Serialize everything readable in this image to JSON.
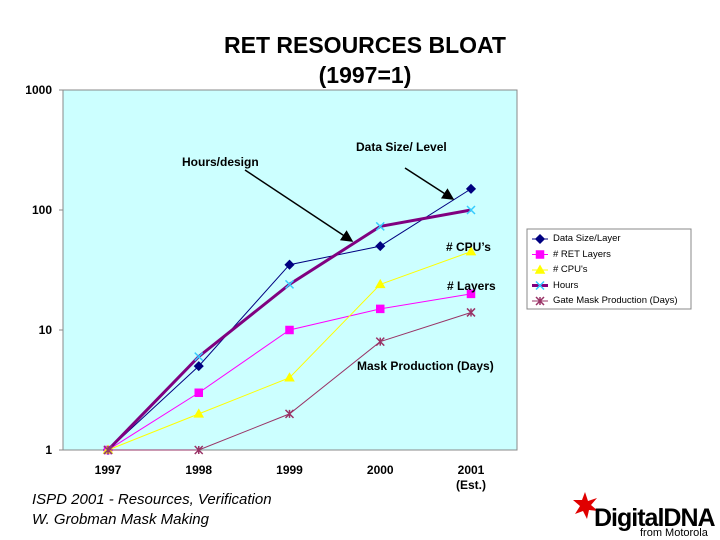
{
  "chart_data": {
    "type": "line",
    "title": "RET RESOURCES BLOAT\n(1997=1)",
    "categories": [
      "1997",
      "1998",
      "1999",
      "2000",
      "2001\n(Est.)"
    ],
    "ylim": [
      1,
      1000
    ],
    "yticks": [
      1,
      10,
      100,
      1000
    ],
    "log_scale": true,
    "background": "#ccffff",
    "series": [
      {
        "name": "Data Size/Layer",
        "color": "#000080",
        "marker": "diamond",
        "width": 1,
        "values": [
          1,
          5,
          35,
          50,
          150
        ]
      },
      {
        "name": "# RET Layers",
        "color": "#ff00ff",
        "marker": "square",
        "width": 1,
        "values": [
          1,
          3,
          10,
          15,
          20
        ]
      },
      {
        "name": "# CPU's",
        "color": "#ffff00",
        "marker": "triangle",
        "width": 1,
        "values": [
          1,
          2,
          4,
          24,
          45
        ]
      },
      {
        "name": "Hours",
        "color": "#800080",
        "marker": "x",
        "marker_color": "#33ccff",
        "width": 3,
        "values": [
          1,
          6,
          24,
          73,
          100
        ]
      },
      {
        "name": "Gate Mask Production (Days)",
        "color": "#993366",
        "marker": "star",
        "width": 1,
        "values": [
          1,
          1,
          2,
          8,
          14
        ]
      }
    ],
    "annotations": [
      {
        "text": "Hours/design"
      },
      {
        "text": "Data Size/\nLevel"
      },
      {
        "text": "# CPU’s"
      },
      {
        "text": "# Layers"
      },
      {
        "text": "Mask\nProduction\n(Days)"
      }
    ]
  },
  "footer": "ISPD 2001 - Resources, Verification\nW. Grobman     Mask Making",
  "logo": {
    "brand": "DigitalDNA",
    "sub": "from Motorola"
  }
}
